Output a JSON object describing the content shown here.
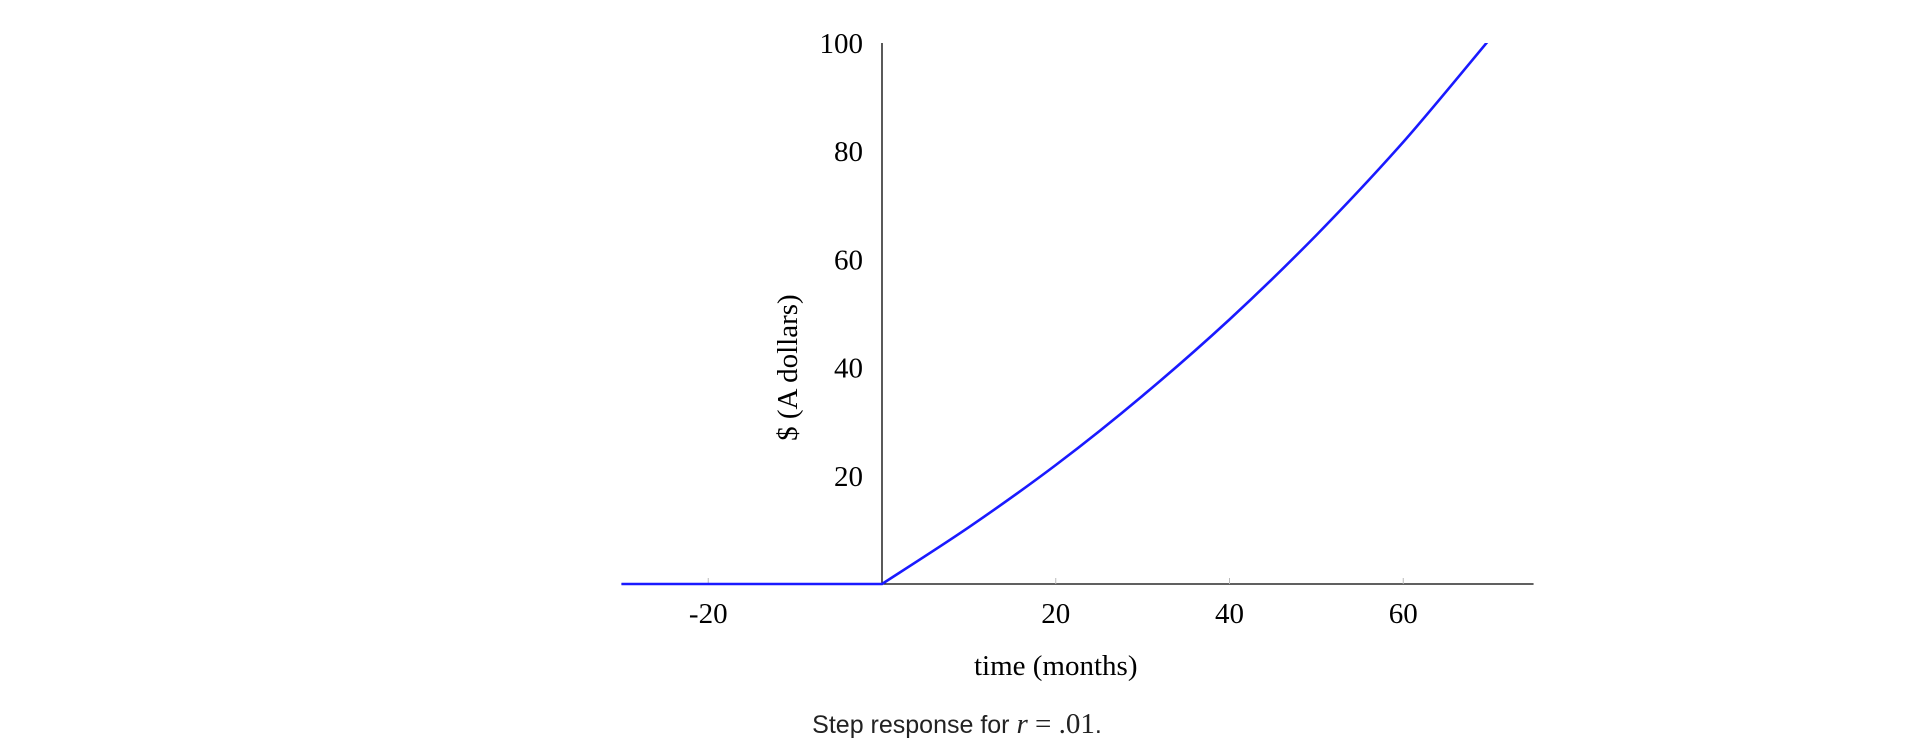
{
  "chart_data": {
    "type": "line",
    "xlabel": "time (months)",
    "ylabel": "$ (A dollars)",
    "xlim": [
      -30,
      75
    ],
    "ylim": [
      0,
      100
    ],
    "x_ticks": [
      -20,
      20,
      40,
      60
    ],
    "y_ticks": [
      20,
      40,
      60,
      80,
      100
    ],
    "grid": false,
    "series": [
      {
        "color": "#1a1aff",
        "x": [
          -30,
          0,
          10,
          20,
          30,
          40,
          50,
          60,
          70
        ],
        "y": [
          0,
          0,
          10.5,
          22.0,
          34.8,
          48.9,
          64.5,
          81.7,
          100.8
        ]
      }
    ]
  },
  "caption": {
    "prefix": "Step response for ",
    "var": "r",
    "eq": " = ",
    "value": ".01",
    "suffix": "."
  }
}
